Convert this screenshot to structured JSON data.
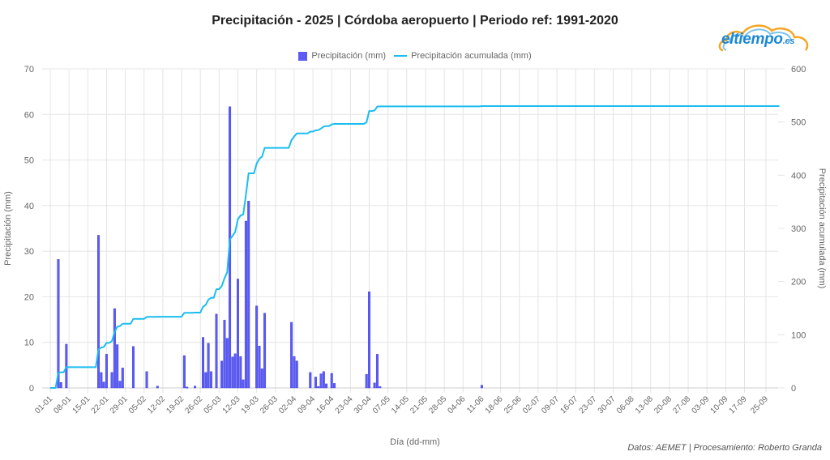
{
  "header": {
    "title": "Precipitación - 2025 | Córdoba aeropuerto | Periodo ref: 1991-2020",
    "logo_main": "eltiempo",
    "logo_suffix": ".es"
  },
  "footer": {
    "credits": "Datos: AEMET | Procesamiento: Roberto Granda"
  },
  "colors": {
    "bar": "#5c5cf2",
    "bar_edge": "#3a3ae6",
    "line": "#1bbdf0",
    "grid": "#e4e4e4"
  },
  "chart_data": {
    "type": "bar",
    "title": "Precipitación - 2025 | Córdoba aeropuerto | Periodo ref: 1991-2020",
    "xlabel": "Día (dd-mm)",
    "ylabel": "Precipitación (mm)",
    "y2label": "Precipitación acumulada (mm)",
    "ylim": [
      0,
      70
    ],
    "y2lim": [
      0,
      600
    ],
    "yticks": [
      0,
      10,
      20,
      30,
      40,
      50,
      60,
      70
    ],
    "y2ticks": [
      0,
      100,
      200,
      300,
      400,
      500,
      600
    ],
    "grid": true,
    "legend_position": "top",
    "legend": [
      "Precipitación (mm)",
      "Precipitación acumulada (mm)"
    ],
    "xticks": [
      "01-01",
      "08-01",
      "15-01",
      "22-01",
      "29-01",
      "05-02",
      "12-02",
      "19-02",
      "26-02",
      "05-03",
      "12-03",
      "19-03",
      "26-03",
      "02-04",
      "09-04",
      "16-04",
      "23-04",
      "30-04",
      "07-05",
      "14-05",
      "21-05",
      "28-05",
      "04-06",
      "11-06",
      "18-06",
      "25-06",
      "02-07",
      "09-07",
      "16-07",
      "23-07",
      "30-07",
      "06-08",
      "13-08",
      "20-08",
      "27-08",
      "03-09",
      "10-09",
      "17-09",
      "25-09"
    ],
    "series": [
      {
        "name": "Precipitación (mm)",
        "type": "bar",
        "axis": "left",
        "points": [
          {
            "day": "04-01",
            "value": 28.2
          },
          {
            "day": "05-01",
            "value": 1.2
          },
          {
            "day": "07-01",
            "value": 9.6
          },
          {
            "day": "19-01",
            "value": 33.5
          },
          {
            "day": "20-01",
            "value": 3.4
          },
          {
            "day": "21-01",
            "value": 1.3
          },
          {
            "day": "22-01",
            "value": 7.4
          },
          {
            "day": "24-01",
            "value": 3.4
          },
          {
            "day": "25-01",
            "value": 17.4
          },
          {
            "day": "26-01",
            "value": 9.5
          },
          {
            "day": "27-01",
            "value": 1.5
          },
          {
            "day": "28-01",
            "value": 4.4
          },
          {
            "day": "01-02",
            "value": 9.1
          },
          {
            "day": "06-02",
            "value": 3.6
          },
          {
            "day": "10-02",
            "value": 0.4
          },
          {
            "day": "20-02",
            "value": 7.1
          },
          {
            "day": "21-02",
            "value": 0.2
          },
          {
            "day": "24-02",
            "value": 0.4
          },
          {
            "day": "27-02",
            "value": 11.1
          },
          {
            "day": "28-02",
            "value": 3.4
          },
          {
            "day": "01-03",
            "value": 9.8
          },
          {
            "day": "02-03",
            "value": 3.6
          },
          {
            "day": "04-03",
            "value": 16.2
          },
          {
            "day": "06-03",
            "value": 5.9
          },
          {
            "day": "07-03",
            "value": 14.9
          },
          {
            "day": "08-03",
            "value": 10.9
          },
          {
            "day": "09-03",
            "value": 61.7
          },
          {
            "day": "10-03",
            "value": 6.8
          },
          {
            "day": "11-03",
            "value": 7.5
          },
          {
            "day": "12-03",
            "value": 23.9
          },
          {
            "day": "13-03",
            "value": 6.9
          },
          {
            "day": "14-03",
            "value": 1.8
          },
          {
            "day": "15-03",
            "value": 36.6
          },
          {
            "day": "16-03",
            "value": 41.0
          },
          {
            "day": "19-03",
            "value": 18.0
          },
          {
            "day": "20-03",
            "value": 9.2
          },
          {
            "day": "21-03",
            "value": 4.2
          },
          {
            "day": "22-03",
            "value": 16.4
          },
          {
            "day": "01-04",
            "value": 14.4
          },
          {
            "day": "02-04",
            "value": 6.9
          },
          {
            "day": "03-04",
            "value": 5.9
          },
          {
            "day": "08-04",
            "value": 3.4
          },
          {
            "day": "10-04",
            "value": 2.4
          },
          {
            "day": "11-04",
            "value": 0.3
          },
          {
            "day": "12-04",
            "value": 3.1
          },
          {
            "day": "13-04",
            "value": 3.6
          },
          {
            "day": "14-04",
            "value": 0.9
          },
          {
            "day": "16-04",
            "value": 3.2
          },
          {
            "day": "17-04",
            "value": 1.0
          },
          {
            "day": "29-04",
            "value": 3.0
          },
          {
            "day": "30-04",
            "value": 21.1
          },
          {
            "day": "02-05",
            "value": 1.1
          },
          {
            "day": "03-05",
            "value": 7.4
          },
          {
            "day": "04-05",
            "value": 0.3
          },
          {
            "day": "11-06",
            "value": 0.6
          }
        ]
      },
      {
        "name": "Precipitación acumulada (mm)",
        "type": "line",
        "axis": "right",
        "cumulative_of": "Precipitación (mm)"
      }
    ]
  }
}
